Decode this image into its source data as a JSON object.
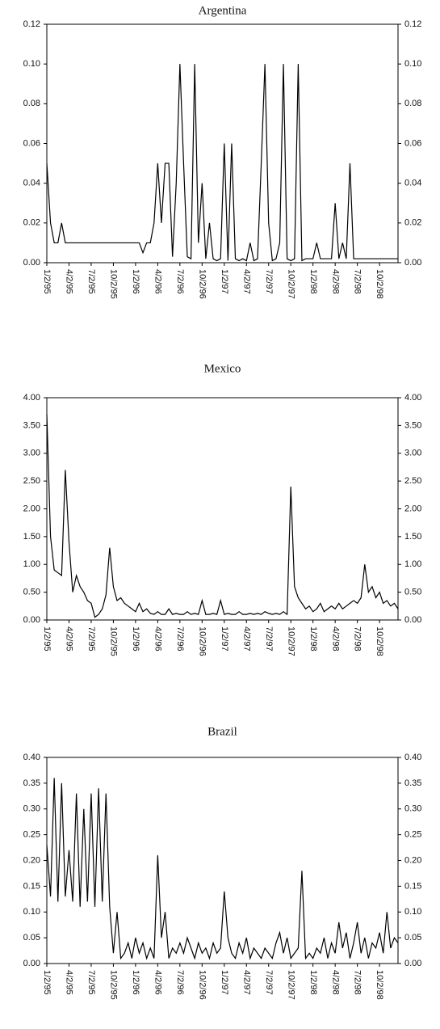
{
  "chart_data": [
    {
      "type": "line",
      "title": "Argentina",
      "color": "#000000",
      "categories": [
        "1/2/95",
        null,
        null,
        null,
        null,
        null,
        "4/2/95",
        null,
        null,
        null,
        null,
        null,
        "7/2/95",
        null,
        null,
        null,
        null,
        null,
        "10/2/95",
        null,
        null,
        null,
        null,
        null,
        "1/2/96",
        null,
        null,
        null,
        null,
        null,
        "4/2/96",
        null,
        null,
        null,
        null,
        null,
        "7/2/96",
        null,
        null,
        null,
        null,
        null,
        "10/2/96",
        null,
        null,
        null,
        null,
        null,
        "1/2/97",
        null,
        null,
        null,
        null,
        null,
        "4/2/97",
        null,
        null,
        null,
        null,
        null,
        "7/2/97",
        null,
        null,
        null,
        null,
        null,
        "10/2/97",
        null,
        null,
        null,
        null,
        null,
        "1/2/98",
        null,
        null,
        null,
        null,
        null,
        "4/2/98",
        null,
        null,
        null,
        null,
        null,
        "7/2/98",
        null,
        null,
        null,
        null,
        null,
        "10/2/98",
        null,
        null,
        null,
        null,
        null
      ],
      "values": [
        0.05,
        0.02,
        0.01,
        0.01,
        0.02,
        0.01,
        0.01,
        0.01,
        0.01,
        0.01,
        0.01,
        0.01,
        0.01,
        0.01,
        0.01,
        0.01,
        0.01,
        0.01,
        0.01,
        0.01,
        0.01,
        0.01,
        0.01,
        0.01,
        0.01,
        0.01,
        0.005,
        0.01,
        0.01,
        0.02,
        0.05,
        0.02,
        0.05,
        0.05,
        0.003,
        0.04,
        0.1,
        0.05,
        0.003,
        0.002,
        0.1,
        0.01,
        0.04,
        0.002,
        0.02,
        0.002,
        0.001,
        0.002,
        0.06,
        0.001,
        0.06,
        0.002,
        0.001,
        0.002,
        0.001,
        0.01,
        0.001,
        0.002,
        0.05,
        0.1,
        0.02,
        0.001,
        0.002,
        0.01,
        0.1,
        0.002,
        0.001,
        0.002,
        0.1,
        0.001,
        0.002,
        0.002,
        0.002,
        0.01,
        0.002,
        0.002,
        0.002,
        0.002,
        0.03,
        0.002,
        0.01,
        0.002,
        0.05,
        0.002,
        0.002,
        0.002,
        0.002,
        0.002,
        0.002,
        0.002,
        0.002,
        0.002,
        0.002,
        0.002,
        0.002,
        0.002
      ],
      "ylim": [
        0,
        0.12
      ],
      "yticks": [
        {
          "value": 0,
          "label": "0.00"
        },
        0.02,
        0.04,
        0.06,
        0.08,
        {
          "value": 0.1,
          "label": "0.10"
        },
        0.12
      ]
    },
    {
      "type": "line",
      "title": "Mexico",
      "color": "#000000",
      "categories": [
        "1/2/95",
        null,
        null,
        null,
        null,
        null,
        "4/2/95",
        null,
        null,
        null,
        null,
        null,
        "7/2/95",
        null,
        null,
        null,
        null,
        null,
        "10/2/95",
        null,
        null,
        null,
        null,
        null,
        "1/2/96",
        null,
        null,
        null,
        null,
        null,
        "4/2/96",
        null,
        null,
        null,
        null,
        null,
        "7/2/96",
        null,
        null,
        null,
        null,
        null,
        "10/2/96",
        null,
        null,
        null,
        null,
        null,
        "1/2/97",
        null,
        null,
        null,
        null,
        null,
        "4/2/97",
        null,
        null,
        null,
        null,
        null,
        "7/2/97",
        null,
        null,
        null,
        null,
        null,
        "10/2/97",
        null,
        null,
        null,
        null,
        null,
        "1/2/98",
        null,
        null,
        null,
        null,
        null,
        "4/2/98",
        null,
        null,
        null,
        null,
        null,
        "7/2/98",
        null,
        null,
        null,
        null,
        null,
        "10/2/98",
        null,
        null,
        null,
        null,
        null
      ],
      "values": [
        3.7,
        1.5,
        0.9,
        0.85,
        0.8,
        2.7,
        1.4,
        0.5,
        0.8,
        0.6,
        0.5,
        0.35,
        0.3,
        0.05,
        0.1,
        0.2,
        0.45,
        1.3,
        0.6,
        0.35,
        0.4,
        0.3,
        0.25,
        0.2,
        0.15,
        0.3,
        0.15,
        0.2,
        0.12,
        0.1,
        0.15,
        0.1,
        0.1,
        0.2,
        0.1,
        0.12,
        0.1,
        0.1,
        0.15,
        0.1,
        0.12,
        0.1,
        0.35,
        0.1,
        0.1,
        0.12,
        0.1,
        0.35,
        0.1,
        0.12,
        0.1,
        0.1,
        0.15,
        0.1,
        0.1,
        0.12,
        0.1,
        0.12,
        0.1,
        0.15,
        0.12,
        0.1,
        0.12,
        0.1,
        0.15,
        0.1,
        2.4,
        0.6,
        0.4,
        0.3,
        0.2,
        0.25,
        0.15,
        0.2,
        0.3,
        0.15,
        0.2,
        0.25,
        0.2,
        0.3,
        0.2,
        0.25,
        0.3,
        0.35,
        0.3,
        0.4,
        1.0,
        0.5,
        0.6,
        0.4,
        0.5,
        0.3,
        0.35,
        0.25,
        0.3,
        0.2
      ],
      "ylim": [
        0,
        4
      ],
      "yticks": [
        {
          "value": 0,
          "label": "0.00"
        },
        {
          "value": 0.5,
          "label": "0.50"
        },
        {
          "value": 1,
          "label": "1.00"
        },
        {
          "value": 1.5,
          "label": "1.50"
        },
        {
          "value": 2,
          "label": "2.00"
        },
        {
          "value": 2.5,
          "label": "2.50"
        },
        {
          "value": 3,
          "label": "3.00"
        },
        {
          "value": 3.5,
          "label": "3.50"
        },
        {
          "value": 4,
          "label": "4.00"
        }
      ]
    },
    {
      "type": "line",
      "title": "Brazil",
      "color": "#000000",
      "categories": [
        "1/2/95",
        null,
        null,
        null,
        null,
        null,
        "4/2/95",
        null,
        null,
        null,
        null,
        null,
        "7/2/95",
        null,
        null,
        null,
        null,
        null,
        "10/2/95",
        null,
        null,
        null,
        null,
        null,
        "1/2/96",
        null,
        null,
        null,
        null,
        null,
        "4/2/96",
        null,
        null,
        null,
        null,
        null,
        "7/2/96",
        null,
        null,
        null,
        null,
        null,
        "10/2/96",
        null,
        null,
        null,
        null,
        null,
        "1/2/97",
        null,
        null,
        null,
        null,
        null,
        "4/2/97",
        null,
        null,
        null,
        null,
        null,
        "7/2/97",
        null,
        null,
        null,
        null,
        null,
        "10/2/97",
        null,
        null,
        null,
        null,
        null,
        "1/2/98",
        null,
        null,
        null,
        null,
        null,
        "4/2/98",
        null,
        null,
        null,
        null,
        null,
        "7/2/98",
        null,
        null,
        null,
        null,
        null,
        "10/2/98",
        null,
        null,
        null,
        null,
        null
      ],
      "values": [
        0.23,
        0.13,
        0.36,
        0.12,
        0.35,
        0.13,
        0.22,
        0.12,
        0.33,
        0.11,
        0.3,
        0.12,
        0.33,
        0.11,
        0.34,
        0.12,
        0.33,
        0.11,
        0.02,
        0.1,
        0.01,
        0.02,
        0.04,
        0.01,
        0.05,
        0.02,
        0.04,
        0.01,
        0.03,
        0.01,
        0.21,
        0.05,
        0.1,
        0.01,
        0.03,
        0.02,
        0.04,
        0.02,
        0.05,
        0.03,
        0.01,
        0.04,
        0.02,
        0.03,
        0.01,
        0.04,
        0.02,
        0.03,
        0.14,
        0.05,
        0.02,
        0.01,
        0.04,
        0.02,
        0.05,
        0.01,
        0.03,
        0.02,
        0.01,
        0.03,
        0.02,
        0.01,
        0.04,
        0.06,
        0.02,
        0.05,
        0.01,
        0.02,
        0.03,
        0.18,
        0.01,
        0.02,
        0.01,
        0.03,
        0.02,
        0.05,
        0.01,
        0.04,
        0.02,
        0.08,
        0.03,
        0.06,
        0.01,
        0.04,
        0.08,
        0.02,
        0.05,
        0.01,
        0.04,
        0.03,
        0.06,
        0.02,
        0.1,
        0.03,
        0.05,
        0.04
      ],
      "ylim": [
        0,
        0.4
      ],
      "yticks": [
        {
          "value": 0,
          "label": "0.00"
        },
        0.05,
        {
          "value": 0.1,
          "label": "0.10"
        },
        0.15,
        {
          "value": 0.2,
          "label": "0.20"
        },
        0.25,
        {
          "value": 0.3,
          "label": "0.30"
        },
        0.35,
        {
          "value": 0.4,
          "label": "0.40"
        }
      ]
    }
  ]
}
